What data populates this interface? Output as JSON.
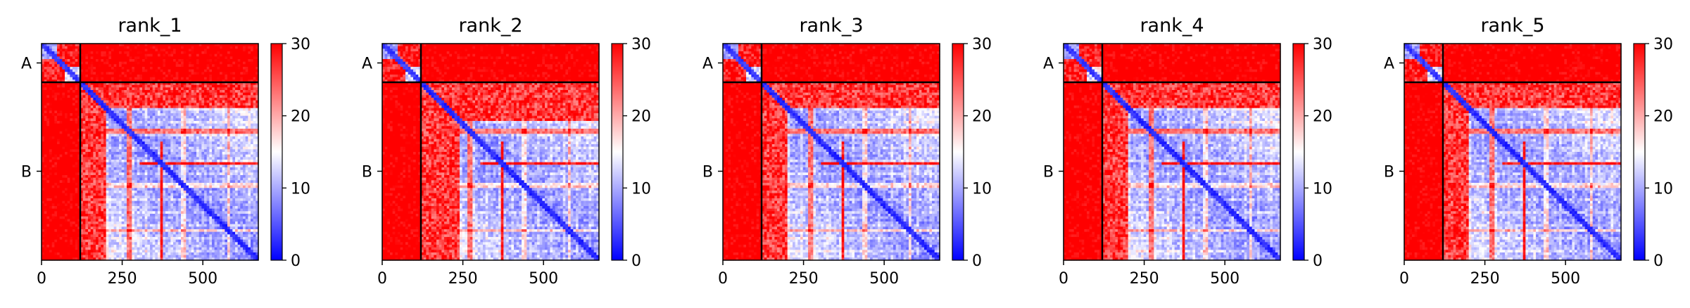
{
  "chart_data": {
    "type": "heatmap",
    "colormap": {
      "name": "bwr",
      "low": "#0000ff",
      "mid": "#ffffff",
      "high": "#ff0000"
    },
    "value_range": [
      0,
      30
    ],
    "colorbar_ticks": [
      0,
      10,
      20,
      30
    ],
    "x_ticks": [
      0,
      250,
      500
    ],
    "x_range": [
      0,
      672
    ],
    "extra_x_tick_labels": {
      "at": 120,
      "offset": 0
    },
    "chain_boundary": 120,
    "chains": [
      {
        "label": "A",
        "start": 0,
        "end": 120
      },
      {
        "label": "B",
        "start": 120,
        "end": 672
      }
    ],
    "panels": [
      {
        "title": "rank_1",
        "chainA_intra_block": 50,
        "AB_lower_band_end": 200
      },
      {
        "title": "rank_2",
        "chainA_intra_block": 50,
        "AB_lower_band_end": 240
      },
      {
        "title": "rank_3",
        "chainA_intra_block": 50,
        "AB_lower_band_end": 200
      },
      {
        "title": "rank_4",
        "chainA_intra_block": 50,
        "AB_lower_band_end": 200
      },
      {
        "title": "rank_5",
        "chainA_intra_block": 50,
        "AB_lower_band_end": 200
      }
    ]
  }
}
